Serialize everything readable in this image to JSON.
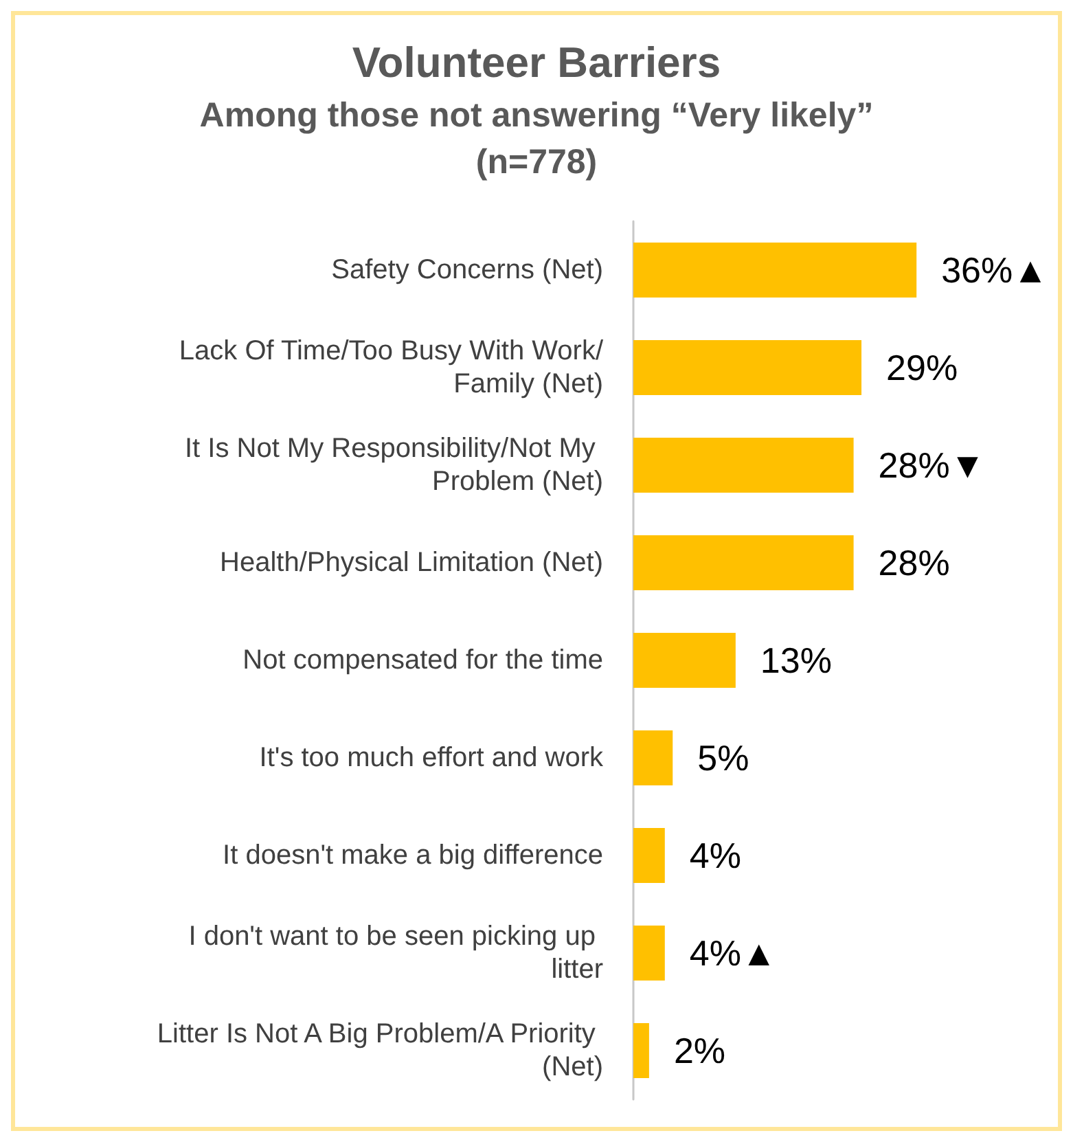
{
  "chart_data": {
    "type": "bar",
    "orientation": "horizontal",
    "title": "Volunteer Barriers",
    "subtitle": "Among those not answering “Very likely”\n(n=778)",
    "categories": [
      "Safety Concerns (Net)",
      "Lack Of Time/Too Busy With Work/Family (Net)",
      "It Is Not My Responsibility/Not My Problem (Net)",
      "Health/Physical Limitation (Net)",
      "Not compensated for the time",
      "It's too much effort and work",
      "It doesn't make a big difference",
      "I don't want to be seen picking up litter",
      "Litter Is Not A Big Problem/A Priority (Net)"
    ],
    "values": [
      36,
      29,
      28,
      28,
      13,
      5,
      4,
      4,
      2
    ],
    "value_labels": [
      "36%▲",
      "29%",
      "28%▼",
      "28%",
      "13%",
      "5%",
      "4%",
      "4%▲",
      "2%"
    ],
    "color": "#ffc000"
  }
}
